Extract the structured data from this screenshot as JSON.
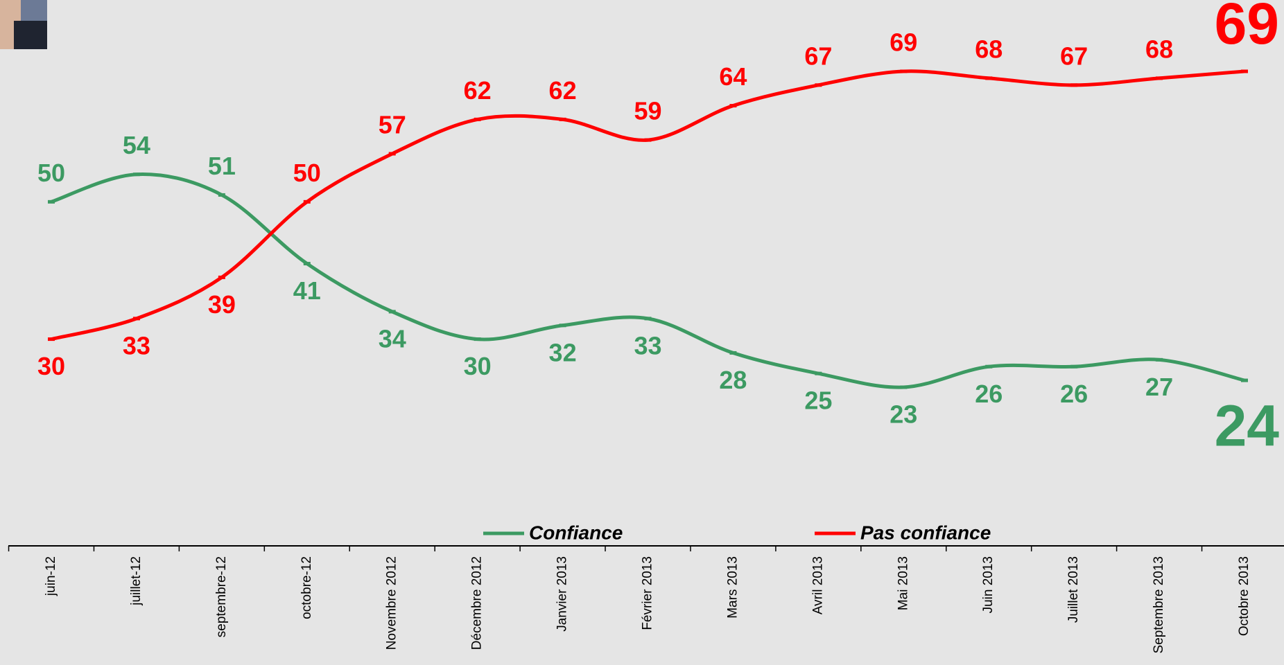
{
  "chart_data": {
    "type": "line",
    "categories": [
      "juin-12",
      "juillet-12",
      "septembre-12",
      "octobre-12",
      "Novembre 2012",
      "Décembre 2012",
      "Janvier 2013",
      "Février 2013",
      "Mars 2013",
      "Avril 2013",
      "Mai 2013",
      "Juin 2013",
      "Juillet 2013",
      "Septembre 2013",
      "Octobre 2013"
    ],
    "series": [
      {
        "name": "Confiance",
        "color": "#3c9a62",
        "values": [
          50,
          54,
          51,
          41,
          34,
          30,
          32,
          33,
          28,
          25,
          23,
          26,
          26,
          27,
          24
        ]
      },
      {
        "name": "Pas confiance",
        "color": "#ff0000",
        "values": [
          30,
          33,
          39,
          50,
          57,
          62,
          62,
          59,
          64,
          67,
          69,
          68,
          67,
          68,
          69
        ]
      }
    ]
  }
}
